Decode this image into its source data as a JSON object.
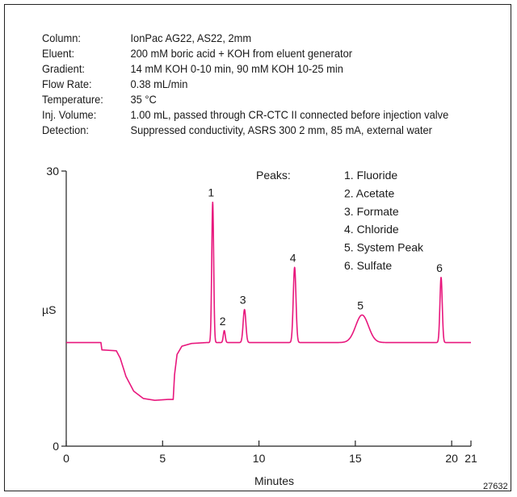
{
  "conditions": [
    {
      "label": "Column:",
      "value": "IonPac AG22, AS22, 2mm"
    },
    {
      "label": "Eluent:",
      "value": "200 mM boric acid + KOH from eluent generator"
    },
    {
      "label": "Gradient:",
      "value": "14 mM KOH 0-10 min, 90 mM KOH 10-25 min"
    },
    {
      "label": "Flow Rate:",
      "value": "0.38 mL/min"
    },
    {
      "label": "Temperature:",
      "value": "35 °C"
    },
    {
      "label": "Inj. Volume:",
      "value": "1.00 mL, passed through CR-CTC II connected before injection valve"
    },
    {
      "label": "Detection:",
      "value": "Suppressed conductivity, ASRS 300 2 mm, 85 mA, external water"
    }
  ],
  "figure_id": "27632",
  "colors": {
    "trace": "#e8177d",
    "axis": "#222222"
  },
  "chart_data": {
    "type": "line",
    "xlabel": "Minutes",
    "ylabel": "µS",
    "xlim": [
      0,
      21
    ],
    "ylim": [
      0,
      30
    ],
    "x_ticks": [
      0,
      5,
      10,
      15,
      20,
      21
    ],
    "y_ticks": [
      0,
      30
    ],
    "grid": false,
    "legend_title": "Peaks:",
    "legend": [
      "1. Fluoride",
      "2. Acetate",
      "3. Formate",
      "4. Chloride",
      "5. System Peak",
      "6. Sulfate"
    ],
    "baseline": [
      [
        0,
        11.3
      ],
      [
        1.8,
        11.3
      ],
      [
        1.85,
        10.5
      ],
      [
        2.6,
        10.4
      ],
      [
        2.8,
        9.6
      ],
      [
        3.1,
        7.6
      ],
      [
        3.5,
        6.0
      ],
      [
        4.0,
        5.2
      ],
      [
        4.6,
        5.0
      ],
      [
        5.3,
        5.1
      ],
      [
        5.55,
        5.1
      ],
      [
        5.62,
        7.8
      ],
      [
        5.75,
        10.0
      ],
      [
        6.0,
        10.9
      ],
      [
        6.5,
        11.2
      ],
      [
        7.3,
        11.3
      ],
      [
        9.0,
        11.3
      ],
      [
        13.0,
        11.3
      ],
      [
        14.2,
        11.3
      ],
      [
        17.0,
        11.3
      ],
      [
        19.0,
        11.3
      ],
      [
        21.0,
        11.3
      ]
    ],
    "peaks": [
      {
        "label": "1",
        "x": 7.6,
        "y": 26.6,
        "sigma": 0.05
      },
      {
        "label": "2",
        "x": 8.2,
        "y": 12.6,
        "sigma": 0.05
      },
      {
        "label": "3",
        "x": 9.25,
        "y": 14.9,
        "sigma": 0.07
      },
      {
        "label": "4",
        "x": 11.85,
        "y": 19.5,
        "sigma": 0.07
      },
      {
        "label": "5",
        "x": 15.35,
        "y": 14.3,
        "sigma": 0.33
      },
      {
        "label": "6",
        "x": 19.45,
        "y": 18.4,
        "sigma": 0.06
      }
    ]
  }
}
